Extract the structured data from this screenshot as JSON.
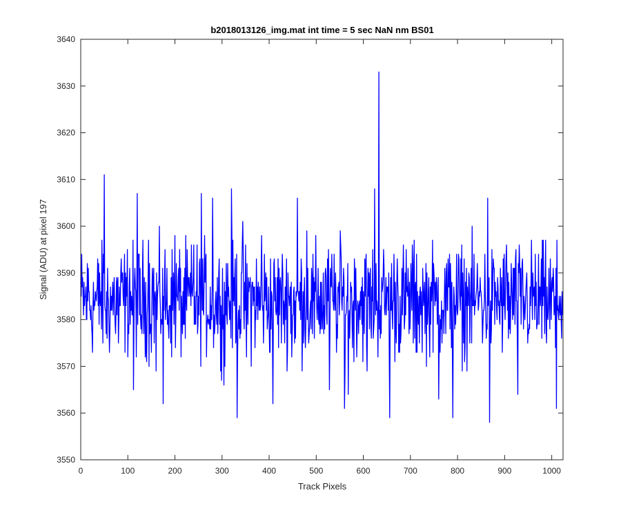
{
  "chart_data": {
    "type": "line",
    "title": "b2018013126_img.mat int time = 5 sec  NaN nm BS01",
    "xlabel": "Track Pixels",
    "ylabel": "Signal (ADU) at pixel 197",
    "xlim": [
      0,
      1024
    ],
    "ylim": [
      3550,
      3640
    ],
    "xticks": [
      0,
      100,
      200,
      300,
      400,
      500,
      600,
      700,
      800,
      900,
      1000
    ],
    "yticks": [
      3550,
      3560,
      3570,
      3580,
      3590,
      3600,
      3610,
      3620,
      3630,
      3640
    ],
    "grid": false,
    "legend": "none",
    "series_color": "#0000ff",
    "x_step": 1,
    "n_points": 1024,
    "baseline": 3584,
    "series": [
      {
        "values_sampled_every_8_pixels": [
          3588,
          3583,
          3591,
          3577,
          3585,
          3590,
          3594,
          3576,
          3582,
          3583,
          3575,
          3590,
          3583,
          3591,
          3565,
          3611,
          3578,
          3583,
          3597,
          3591,
          3569,
          3586,
          3585,
          3579,
          3589,
          3598,
          3591,
          3577,
          3584,
          3585,
          3596,
          3577,
          3607,
          3588,
          3580,
          3606,
          3581,
          3585,
          3566,
          3592,
          3582,
          3593,
          3578,
          3601,
          3572,
          3589,
          3584,
          3580,
          3598,
          3586,
          3579,
          3562,
          3582,
          3589,
          3583,
          3590,
          3572,
          3576,
          3586,
          3586,
          3599,
          3584,
          3576,
          3591,
          3581,
          3591,
          3565,
          3584,
          3579,
          3596,
          3589,
          3564,
          3580,
          3591,
          3584,
          3586,
          3569,
          3579,
          3608,
          3583,
          3586,
          3589,
          3559,
          3584,
          3593,
          3577,
          3580,
          3585,
          3596,
          3573,
          3586,
          3583,
          3579,
          3588,
          3583,
          3563,
          3582,
          3590,
          3578,
          3587,
          3581,
          3585,
          3574,
          3590,
          3583,
          3586,
          3589,
          3582,
          3606,
          3578,
          3588,
          3584,
          3580,
          3596,
          3577,
          3591,
          3564,
          3587,
          3583,
          3579,
          3590,
          3578,
          3583,
          3589,
          3580,
          3588,
          3574,
          3585,
          3582,
          3591,
          3578,
          3586,
          3576,
          3589,
          3584,
          3561,
          3582,
          3587,
          3578,
          3590,
          3580,
          3586,
          3584,
          3579,
          3585,
          3599,
          3591,
          3577,
          3583,
          3588,
          3582,
          3586,
          3577,
          3605,
          3584,
          3588,
          3633,
          3565,
          3580,
          3583,
          3587,
          3578,
          3591,
          3585,
          3574,
          3588,
          3582,
          3593,
          3578,
          3586,
          3576,
          3584,
          3589,
          3603,
          3576,
          3583,
          3588,
          3580,
          3595,
          3583,
          3579,
          3562,
          3586,
          3591,
          3578,
          3590,
          3581,
          3584,
          3596,
          3583,
          3577,
          3585,
          3589,
          3579,
          3583,
          3559,
          3584,
          3588,
          3580,
          3576,
          3590,
          3583,
          3586,
          3596,
          3563,
          3582,
          3587,
          3579,
          3588,
          3584,
          3567,
          3574,
          3589,
          3581,
          3563,
          3585,
          3587,
          3591,
          3577,
          3600,
          3568,
          3580,
          3585,
          3596,
          3582,
          3577,
          3589,
          3572,
          3580,
          3586,
          3583,
          3590,
          3566,
          3581,
          3603,
          3584,
          3562,
          3604,
          3577,
          3594
        ]
      }
    ],
    "spikes": [
      {
        "x": 50,
        "y": 3611
      },
      {
        "x": 120,
        "y": 3607
      },
      {
        "x": 175,
        "y": 3562
      },
      {
        "x": 320,
        "y": 3608
      },
      {
        "x": 332,
        "y": 3559
      },
      {
        "x": 460,
        "y": 3606
      },
      {
        "x": 560,
        "y": 3561
      },
      {
        "x": 633,
        "y": 3633
      },
      {
        "x": 790,
        "y": 3559
      },
      {
        "x": 868,
        "y": 3558
      },
      {
        "x": 1010,
        "y": 3561
      }
    ]
  }
}
